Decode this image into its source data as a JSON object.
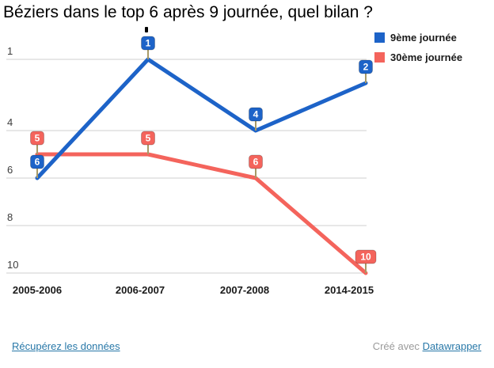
{
  "title": "Béziers dans le top 6 après 9 journée, quel bilan ?",
  "legend": [
    {
      "label": "9ème journée",
      "color": "#1d63c8"
    },
    {
      "label": "30ème journée",
      "color": "#f4645c"
    }
  ],
  "footer": {
    "data_link": "Récupérez les données",
    "credit_prefix": "Créé avec",
    "credit_link": "Datawrapper"
  },
  "colors": {
    "series_blue": "#1d63c8",
    "series_red": "#f4645c",
    "gridline": "#cfcfcf",
    "badge_stem": "#a89a66",
    "y_tick_text": "#3c3c3c",
    "x_tick_text": "#1a1a1a",
    "link_blue": "#2878a8",
    "credit_gray": "#9b9b9b"
  },
  "chart_data": {
    "type": "line",
    "title": "Béziers dans le top 6 après 9 journée, quel bilan ?",
    "categories": [
      "2005-2006",
      "2006-2007",
      "2007-2008",
      "2014-2015"
    ],
    "series": [
      {
        "name": "9ème journée",
        "color": "#1d63c8",
        "values": [
          6,
          1,
          4,
          2
        ]
      },
      {
        "name": "30ème journée",
        "color": "#f4645c",
        "values": [
          5,
          5,
          6,
          10
        ]
      }
    ],
    "yticks": [
      1,
      4,
      6,
      8,
      10
    ],
    "ylim": [
      1,
      10
    ],
    "y_inverted": true,
    "grid": true,
    "legend_position": "top-right",
    "value_labels": true,
    "xlabel": "",
    "ylabel": ""
  }
}
